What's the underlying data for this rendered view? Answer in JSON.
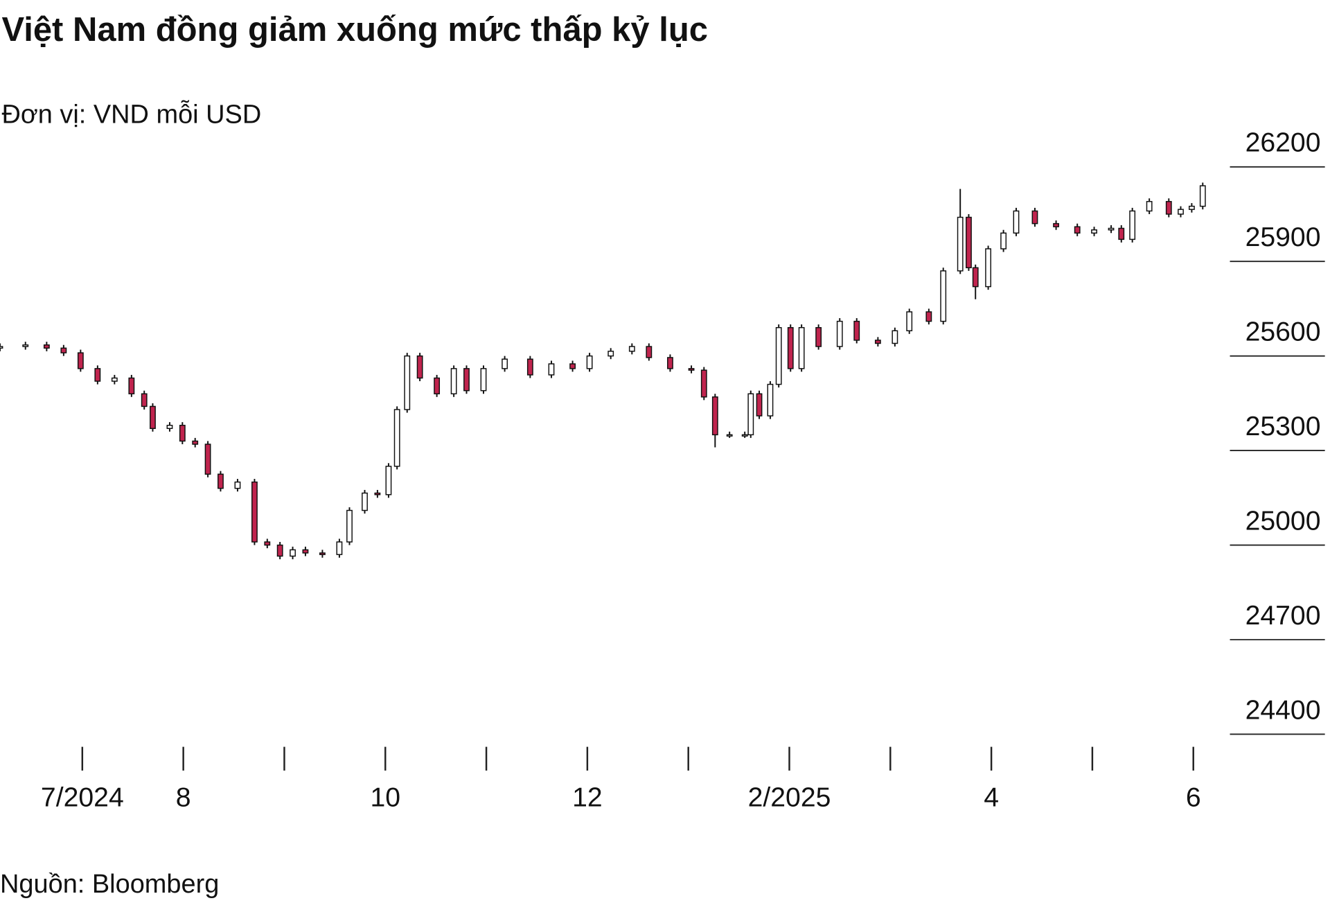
{
  "chart_data": {
    "type": "candlestick",
    "title": "Việt Nam đồng giảm xuống mức thấp kỷ lục",
    "subtitle": "Đơn vị: VND mỗi USD",
    "source": "Nguồn: Bloomberg",
    "up_color": "#ffffff",
    "down_color": "#c0244e",
    "edge_color": "#111111",
    "x": [
      -0.815,
      -0.563,
      -0.353,
      -0.185,
      -0.017,
      0.151,
      0.319,
      0.487,
      0.613,
      0.697,
      0.865,
      0.991,
      1.117,
      1.243,
      1.369,
      1.537,
      1.705,
      1.831,
      1.957,
      2.083,
      2.209,
      2.377,
      2.545,
      2.645,
      2.796,
      2.922,
      3.032,
      3.116,
      3.216,
      3.342,
      3.51,
      3.678,
      3.804,
      3.972,
      4.182,
      4.434,
      4.644,
      4.854,
      5.022,
      5.232,
      5.442,
      5.61,
      5.82,
      6.03,
      6.155,
      6.265,
      6.408,
      6.559,
      6.618,
      6.702,
      6.811,
      6.895,
      7.012,
      7.121,
      7.289,
      7.499,
      7.667,
      7.877,
      8.045,
      8.188,
      8.381,
      8.524,
      8.692,
      8.776,
      8.843,
      8.969,
      9.12,
      9.246,
      9.431,
      9.641,
      9.851,
      10.018,
      10.186,
      10.287,
      10.396,
      10.564,
      10.757,
      10.875,
      10.984,
      11.093
    ],
    "open": [
      25625,
      25630,
      25635,
      25625,
      25610,
      25560,
      25520,
      25530,
      25480,
      25440,
      25370,
      25380,
      25330,
      25320,
      25225,
      25180,
      25200,
      25010,
      25000,
      24965,
      24985,
      24975,
      24970,
      25010,
      25110,
      25165,
      25160,
      25250,
      25430,
      25600,
      25530,
      25480,
      25560,
      25490,
      25560,
      25590,
      25540,
      25575,
      25560,
      25600,
      25615,
      25630,
      25595,
      25560,
      25555,
      25470,
      25350,
      25350,
      25350,
      25480,
      25410,
      25510,
      25690,
      25560,
      25690,
      25630,
      25710,
      25650,
      25640,
      25680,
      25740,
      25710,
      25870,
      26040,
      25880,
      25820,
      25940,
      25990,
      26060,
      26020,
      26010,
      25990,
      26000,
      26005,
      25970,
      26060,
      26090,
      26050,
      26065,
      26075
    ],
    "high": [
      25640,
      25645,
      25645,
      25635,
      25620,
      25570,
      25540,
      25540,
      25490,
      25450,
      25390,
      25390,
      25340,
      25330,
      25235,
      25210,
      25210,
      25020,
      25010,
      24995,
      24995,
      24985,
      25020,
      25120,
      25175,
      25175,
      25260,
      25440,
      25610,
      25610,
      25540,
      25570,
      25570,
      25570,
      25600,
      25600,
      25585,
      25585,
      25610,
      25625,
      25640,
      25640,
      25605,
      25570,
      25565,
      25480,
      25360,
      25360,
      25490,
      25490,
      25520,
      25700,
      25700,
      25700,
      25700,
      25720,
      25720,
      25660,
      25690,
      25750,
      25750,
      25880,
      26130,
      26050,
      25890,
      25950,
      26000,
      26070,
      26070,
      26030,
      26020,
      26010,
      26015,
      26015,
      26070,
      26100,
      26100,
      26075,
      26085,
      26150
    ],
    "low": [
      25615,
      25620,
      25615,
      25600,
      25550,
      25510,
      25510,
      25470,
      25430,
      25360,
      25360,
      25320,
      25310,
      25215,
      25170,
      25170,
      25000,
      24990,
      24955,
      24955,
      24965,
      24960,
      24960,
      25000,
      25100,
      25150,
      25150,
      25240,
      25420,
      25520,
      25470,
      25470,
      25480,
      25480,
      25550,
      25530,
      25530,
      25550,
      25550,
      25590,
      25605,
      25585,
      25550,
      25545,
      25460,
      25310,
      25340,
      25340,
      25340,
      25400,
      25400,
      25500,
      25550,
      25550,
      25620,
      25620,
      25640,
      25630,
      25630,
      25670,
      25700,
      25700,
      25860,
      25870,
      25780,
      25810,
      25930,
      25980,
      26010,
      26000,
      25980,
      25980,
      25990,
      25960,
      25960,
      26050,
      26040,
      26040,
      26055,
      26065
    ],
    "close": [
      25630,
      25635,
      25625,
      25610,
      25560,
      25520,
      25530,
      25480,
      25440,
      25370,
      25380,
      25330,
      25320,
      25225,
      25180,
      25200,
      25010,
      25000,
      24965,
      24985,
      24975,
      24970,
      25010,
      25110,
      25165,
      25160,
      25250,
      25430,
      25600,
      25530,
      25480,
      25560,
      25490,
      25560,
      25590,
      25540,
      25575,
      25560,
      25600,
      25615,
      25630,
      25595,
      25560,
      25555,
      25470,
      25350,
      25350,
      25350,
      25480,
      25410,
      25510,
      25690,
      25560,
      25690,
      25630,
      25710,
      25650,
      25640,
      25680,
      25740,
      25710,
      25870,
      26040,
      25880,
      25820,
      25940,
      25990,
      26060,
      26020,
      26010,
      25990,
      26000,
      26005,
      25970,
      26060,
      26090,
      26050,
      26065,
      26075,
      26140
    ],
    "xlim": [
      -0.815,
      11.32
    ],
    "xticks": [
      {
        "value": 0,
        "label": "7/2024"
      },
      {
        "value": 1,
        "label": "8"
      },
      {
        "value": 2,
        "label": null
      },
      {
        "value": 3,
        "label": "10"
      },
      {
        "value": 4,
        "label": null
      },
      {
        "value": 5,
        "label": "12"
      },
      {
        "value": 6,
        "label": null
      },
      {
        "value": 7,
        "label": "2/2025"
      },
      {
        "value": 8,
        "label": null
      },
      {
        "value": 9,
        "label": "4"
      },
      {
        "value": 10,
        "label": null
      },
      {
        "value": 11,
        "label": "6"
      }
    ],
    "ylim": [
      24360,
      26320
    ],
    "yticks": [
      24400,
      24700,
      25000,
      25300,
      25600,
      25900,
      26200
    ]
  }
}
